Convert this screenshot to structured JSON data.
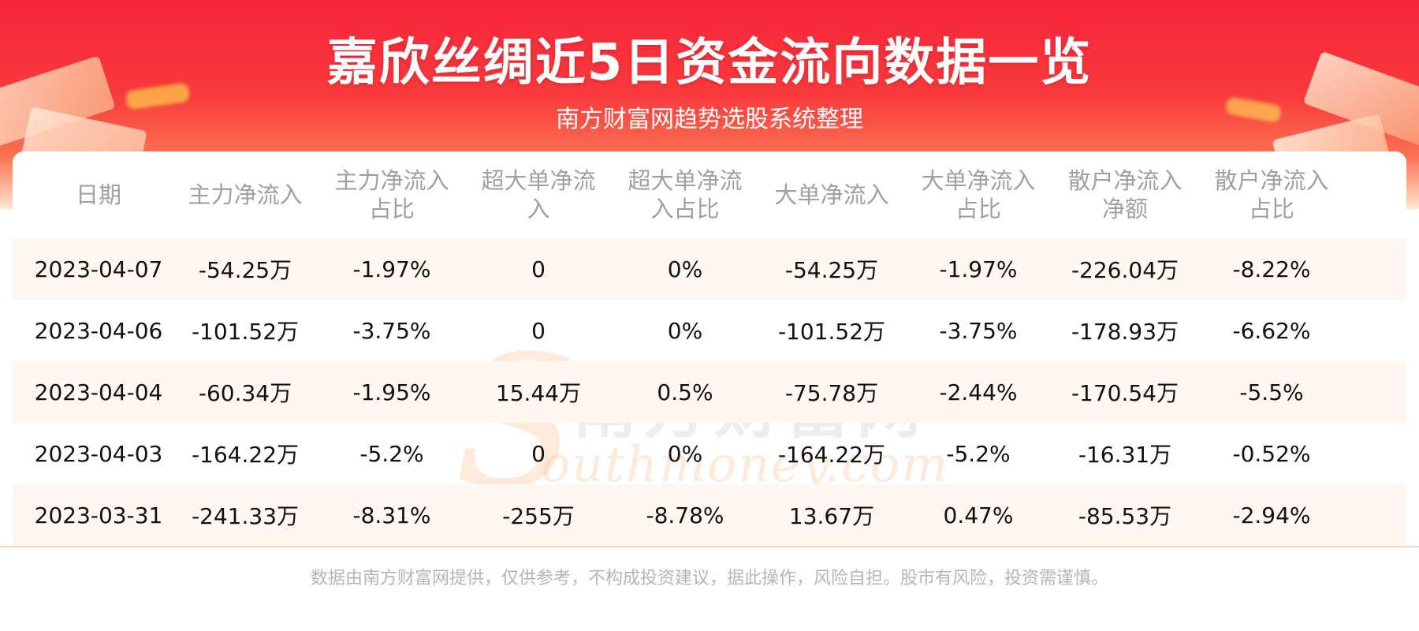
{
  "header": {
    "title": "嘉欣丝绸近5日资金流向数据一览",
    "subtitle": "南方财富网趋势选股系统整理"
  },
  "watermark": {
    "cn": "南方财富网",
    "en": "outhmoney.com",
    "s": "S"
  },
  "table": {
    "columns": [
      "日期",
      "主力净流入",
      "主力净流入占比",
      "超大单净流入",
      "超大单净流入占比",
      "大单净流入",
      "大单净流入占比",
      "散户净流入净额",
      "散户净流入占比"
    ],
    "rows": [
      [
        "2023-04-07",
        "-54.25万",
        "-1.97%",
        "0",
        "0%",
        "-54.25万",
        "-1.97%",
        "-226.04万",
        "-8.22%"
      ],
      [
        "2023-04-06",
        "-101.52万",
        "-3.75%",
        "0",
        "0%",
        "-101.52万",
        "-3.75%",
        "-178.93万",
        "-6.62%"
      ],
      [
        "2023-04-04",
        "-60.34万",
        "-1.95%",
        "15.44万",
        "0.5%",
        "-75.78万",
        "-2.44%",
        "-170.54万",
        "-5.5%"
      ],
      [
        "2023-04-03",
        "-164.22万",
        "-5.2%",
        "0",
        "0%",
        "-164.22万",
        "-5.2%",
        "-16.31万",
        "-0.52%"
      ],
      [
        "2023-03-31",
        "-241.33万",
        "-8.31%",
        "-255万",
        "-8.78%",
        "13.67万",
        "0.47%",
        "-85.53万",
        "-2.94%"
      ]
    ]
  },
  "footer": {
    "disclaimer": "数据由南方财富网提供，仅供参考，不构成投资建议，据此操作，风险自担。股市有风险，投资需谨慎。"
  },
  "colors": {
    "header_red": "#f6253a",
    "row_alt": "#fff8f1",
    "header_text": "#a0a0a0"
  }
}
